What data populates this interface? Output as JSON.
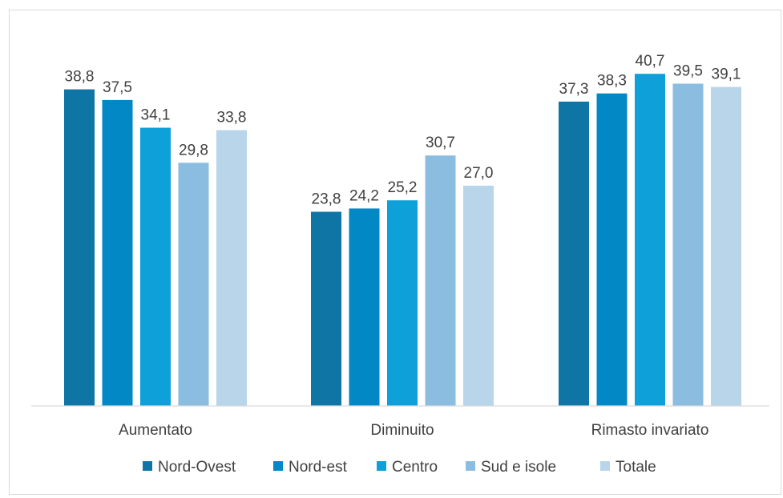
{
  "chart_data": {
    "type": "bar",
    "categories": [
      "Aumentato",
      "Diminuito",
      "Rimasto invariato"
    ],
    "series": [
      {
        "name": "Nord-Ovest",
        "color": "#0e75a5",
        "values": [
          38.8,
          23.8,
          37.3
        ],
        "labels": [
          "38,8",
          "23,8",
          "37,3"
        ]
      },
      {
        "name": "Nord-est",
        "color": "#0288c4",
        "values": [
          37.5,
          24.2,
          38.3
        ],
        "labels": [
          "37,5",
          "24,2",
          "38,3"
        ]
      },
      {
        "name": "Centro",
        "color": "#0ea0d9",
        "values": [
          34.1,
          25.2,
          40.7
        ],
        "labels": [
          "34,1",
          "25,2",
          "40,7"
        ]
      },
      {
        "name": "Sud e isole",
        "color": "#8bbde0",
        "values": [
          29.8,
          30.7,
          39.5
        ],
        "labels": [
          "29,8",
          "30,7",
          "39,5"
        ]
      },
      {
        "name": "Totale",
        "color": "#b8d5ea",
        "values": [
          33.8,
          27.0,
          39.1
        ],
        "labels": [
          "33,8",
          "27,0",
          "39,1"
        ]
      }
    ],
    "title": "",
    "xlabel": "",
    "ylabel": "",
    "ylim": [
      0,
      42
    ],
    "grid": false,
    "legend_position": "bottom"
  }
}
